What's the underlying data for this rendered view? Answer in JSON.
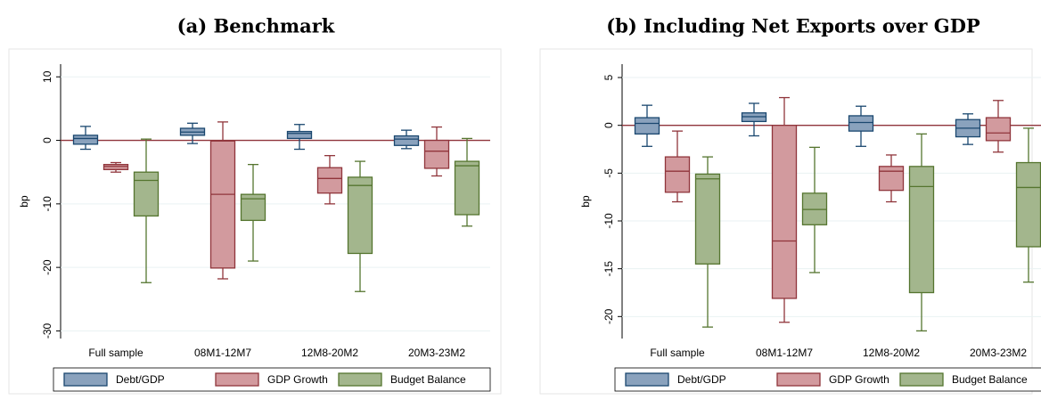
{
  "chart_data": [
    {
      "type": "box",
      "title": "(a) Benchmark",
      "ylabel": "bp",
      "categories": [
        "Full sample",
        "08M1-12M7",
        "12M8-20M2",
        "20M3-23M2"
      ],
      "ylim": [
        -31.2,
        12
      ],
      "yticks": [
        -30,
        -20,
        -10,
        0,
        10
      ],
      "hline": 0,
      "grid": true,
      "series": [
        {
          "name": "Debt/GDP",
          "color": "#1a476f",
          "fill": "#8aa2bd",
          "values": [
            {
              "low": -1.4,
              "q1": -0.6,
              "median": 0.3,
              "q3": 0.8,
              "high": 2.2
            },
            {
              "low": -0.5,
              "q1": 0.8,
              "median": 1.3,
              "q3": 1.9,
              "high": 2.7
            },
            {
              "low": -1.4,
              "q1": 0.3,
              "median": 1.1,
              "q3": 1.4,
              "high": 2.5
            },
            {
              "low": -1.3,
              "q1": -0.8,
              "median": 0.2,
              "q3": 0.7,
              "high": 1.6
            }
          ]
        },
        {
          "name": "GDP Growth",
          "color": "#90353b",
          "fill": "#d29a9e",
          "values": [
            {
              "low": -5.0,
              "q1": -4.6,
              "median": -4.1,
              "q3": -3.8,
              "high": -3.5
            },
            {
              "low": -21.8,
              "q1": -20.1,
              "median": -8.5,
              "q3": -0.1,
              "high": 2.9
            },
            {
              "low": -10.0,
              "q1": -8.3,
              "median": -6.0,
              "q3": -4.3,
              "high": -2.4
            },
            {
              "low": -5.6,
              "q1": -4.4,
              "median": -1.7,
              "q3": 0.0,
              "high": 2.1
            }
          ]
        },
        {
          "name": "Budget Balance",
          "color": "#55752f",
          "fill": "#a3b68d",
          "values": [
            {
              "low": -22.4,
              "q1": -11.9,
              "median": -6.3,
              "q3": -5.0,
              "high": 0.2
            },
            {
              "low": -19.0,
              "q1": -12.6,
              "median": -9.2,
              "q3": -8.5,
              "high": -3.8
            },
            {
              "low": -23.8,
              "q1": -17.8,
              "median": -7.1,
              "q3": -5.8,
              "high": -3.3
            },
            {
              "low": -13.5,
              "q1": -11.7,
              "median": -4.0,
              "q3": -3.3,
              "high": 0.3
            }
          ]
        }
      ]
    },
    {
      "type": "box",
      "title": "(b) Including Net Exports over GDP",
      "ylabel": "bp",
      "categories": [
        "Full sample",
        "08M1-12M7",
        "12M8-20M2",
        "20M3-23M2"
      ],
      "ylim": [
        -22.3,
        6.4
      ],
      "yticks": [
        -20,
        -15,
        -10,
        -5,
        0,
        5
      ],
      "hline": 0,
      "grid": true,
      "series": [
        {
          "name": "Debt/GDP",
          "color": "#1a476f",
          "fill": "#8aa2bd",
          "values": [
            {
              "low": -2.2,
              "q1": -0.9,
              "median": 0.2,
              "q3": 0.8,
              "high": 2.1
            },
            {
              "low": -1.1,
              "q1": 0.4,
              "median": 0.9,
              "q3": 1.3,
              "high": 2.3
            },
            {
              "low": -2.2,
              "q1": -0.6,
              "median": 0.3,
              "q3": 1.0,
              "high": 2.0
            },
            {
              "low": -2.0,
              "q1": -1.2,
              "median": -0.3,
              "q3": 0.6,
              "high": 1.2
            }
          ]
        },
        {
          "name": "GDP Growth",
          "color": "#90353b",
          "fill": "#d29a9e",
          "values": [
            {
              "low": -8.0,
              "q1": -7.0,
              "median": -4.8,
              "q3": -3.3,
              "high": -0.6
            },
            {
              "low": -20.6,
              "q1": -18.1,
              "median": -12.1,
              "q3": 0.0,
              "high": 2.9
            },
            {
              "low": -8.0,
              "q1": -6.8,
              "median": -4.8,
              "q3": -4.3,
              "high": -3.1
            },
            {
              "low": -2.8,
              "q1": -1.6,
              "median": -0.8,
              "q3": 0.8,
              "high": 2.6
            }
          ]
        },
        {
          "name": "Budget Balance",
          "color": "#55752f",
          "fill": "#a3b68d",
          "values": [
            {
              "low": -21.1,
              "q1": -14.5,
              "median": -5.6,
              "q3": -5.1,
              "high": -3.3
            },
            {
              "low": -15.4,
              "q1": -10.4,
              "median": -8.8,
              "q3": -7.1,
              "high": -2.3
            },
            {
              "low": -21.5,
              "q1": -17.5,
              "median": -6.4,
              "q3": -4.3,
              "high": -0.9
            },
            {
              "low": -16.4,
              "q1": -12.7,
              "median": -6.5,
              "q3": -3.9,
              "high": -0.3
            }
          ]
        }
      ]
    }
  ]
}
